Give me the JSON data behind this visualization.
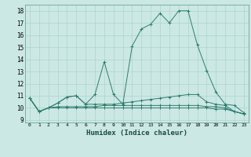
{
  "title": "",
  "xlabel": "Humidex (Indice chaleur)",
  "ylabel": "",
  "bg_color": "#cce8e4",
  "line_color": "#2e7d6e",
  "grid_color": "#aad4cc",
  "xlim": [
    -0.5,
    23.5
  ],
  "ylim": [
    8.8,
    18.5
  ],
  "yticks": [
    9,
    10,
    11,
    12,
    13,
    14,
    15,
    16,
    17,
    18
  ],
  "xticks": [
    0,
    1,
    2,
    3,
    4,
    5,
    6,
    7,
    8,
    9,
    10,
    11,
    12,
    13,
    14,
    15,
    16,
    17,
    18,
    19,
    20,
    21,
    22,
    23
  ],
  "series": [
    [
      10.8,
      9.7,
      10.0,
      10.4,
      10.9,
      11.0,
      10.3,
      11.1,
      13.8,
      11.1,
      10.3,
      15.1,
      16.5,
      16.9,
      17.8,
      17.0,
      18.0,
      18.0,
      15.2,
      13.1,
      11.3,
      10.3,
      10.2,
      9.6
    ],
    [
      10.8,
      9.7,
      10.0,
      10.4,
      10.9,
      11.0,
      10.3,
      10.3,
      10.3,
      10.3,
      10.4,
      10.5,
      10.6,
      10.7,
      10.8,
      10.9,
      11.0,
      11.1,
      11.1,
      10.5,
      10.3,
      10.2,
      9.7,
      9.5
    ],
    [
      10.8,
      9.7,
      10.0,
      10.1,
      10.1,
      10.1,
      10.1,
      10.1,
      10.2,
      10.2,
      10.2,
      10.2,
      10.2,
      10.2,
      10.2,
      10.2,
      10.2,
      10.2,
      10.2,
      10.1,
      10.1,
      10.0,
      9.7,
      9.5
    ],
    [
      10.8,
      9.7,
      10.0,
      10.0,
      10.0,
      10.0,
      10.0,
      10.0,
      10.0,
      10.0,
      10.0,
      10.0,
      10.0,
      10.0,
      10.0,
      10.0,
      10.0,
      10.0,
      10.0,
      10.0,
      9.9,
      9.9,
      9.7,
      9.5
    ]
  ]
}
